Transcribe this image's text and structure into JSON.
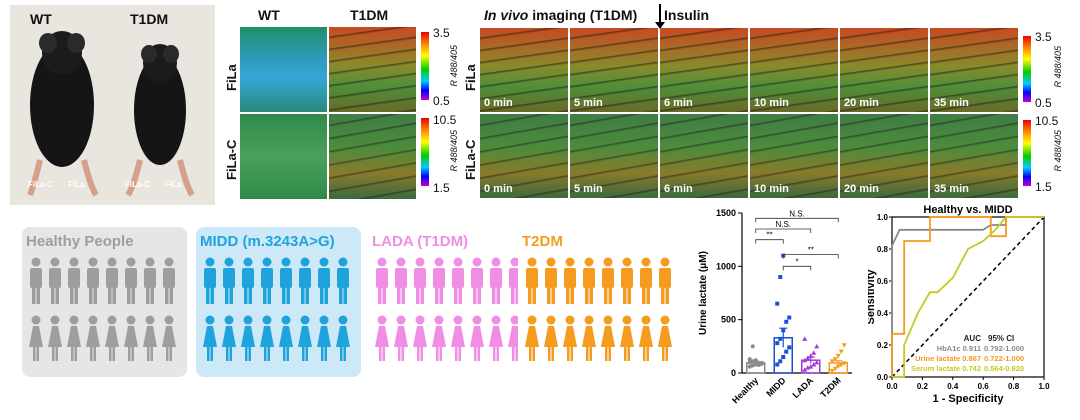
{
  "mice": {
    "wt": "WT",
    "t1dm": "T1DM",
    "labels": [
      "FiLa-C",
      "FiLa",
      "FiLa-C",
      "FiLa"
    ]
  },
  "panel_b": {
    "col_wt": "WT",
    "col_t1dm": "T1DM",
    "row1": "FiLa",
    "row2": "FiLa-C",
    "cbar1": {
      "max": "3.5",
      "min": "0.5",
      "label": "R 488/405"
    },
    "cbar2": {
      "max": "10.5",
      "min": "1.5",
      "label": "R 488/405"
    }
  },
  "panel_c": {
    "title_italic": "In vivo",
    "title_rest": " imaging (T1DM)",
    "arrow_label": "Insulin",
    "row1": "FiLa",
    "row2": "FiLa-C",
    "times": [
      "0 min",
      "5 min",
      "6 min",
      "10 min",
      "20 min",
      "35 min"
    ],
    "cbar1": {
      "max": "3.5",
      "min": "0.5",
      "label": "R 488/405"
    },
    "cbar2": {
      "max": "10.5",
      "min": "1.5",
      "label": "R 488/405"
    }
  },
  "groups": [
    {
      "name": "Healthy People",
      "color": "#9e9e9e",
      "bg": "#e6e6e6"
    },
    {
      "name": "MIDD (m.3243A>G)",
      "color": "#1fa3dc",
      "bg": "#cde9f7"
    },
    {
      "name": "LADA (T1DM)",
      "color": "#f08ee6",
      "bg": "#ffffff"
    },
    {
      "name": "T2DM",
      "color": "#f59b1e",
      "bg": "#ffffff"
    }
  ],
  "chart_data": [
    {
      "type": "scatter",
      "ylabel": "Urine lactate (μM)",
      "categories": [
        "Healthy",
        "MIDD",
        "LADA",
        "T2DM"
      ],
      "ylim": [
        0,
        1500
      ],
      "yticks": [
        "0",
        "500",
        "1000",
        "1500"
      ],
      "colors": [
        "#8a8a8a",
        "#1a4fd6",
        "#a23bd6",
        "#f59b1e"
      ],
      "means": [
        95,
        330,
        120,
        95
      ],
      "sem": [
        15,
        90,
        30,
        20
      ],
      "points": [
        [
          60,
          70,
          80,
          90,
          95,
          100,
          110,
          120,
          75,
          85,
          130,
          250
        ],
        [
          80,
          110,
          150,
          200,
          240,
          280,
          320,
          400,
          480,
          520,
          650,
          900,
          1100
        ],
        [
          30,
          50,
          60,
          80,
          100,
          120,
          140,
          160,
          190,
          250,
          320
        ],
        [
          20,
          40,
          60,
          75,
          90,
          110,
          130,
          160,
          200,
          260
        ]
      ],
      "comparisons": [
        {
          "label": "N.S.",
          "from": "Healthy",
          "to": "T2DM"
        },
        {
          "label": "N.S.",
          "from": "Healthy",
          "to": "LADA"
        },
        {
          "label": "**",
          "from": "Healthy",
          "to": "MIDD"
        },
        {
          "label": "**",
          "from": "MIDD",
          "to": "T2DM"
        },
        {
          "label": "*",
          "from": "MIDD",
          "to": "LADA"
        }
      ]
    },
    {
      "type": "line",
      "title": "Healthy vs. MIDD",
      "xlabel": "1 - Specificity",
      "ylabel": "Sensitivity",
      "xlim": [
        0,
        1
      ],
      "ylim": [
        0,
        1
      ],
      "ticks": [
        "0.0",
        "0.2",
        "0.4",
        "0.6",
        "0.8",
        "1.0"
      ],
      "legend_header": {
        "auc": "AUC",
        "ci": "95% CI"
      },
      "series": [
        {
          "name": "HbA1c",
          "auc": "0.911",
          "ci": "0.792-1.000",
          "color": "#888888",
          "x": [
            0,
            0,
            0.05,
            0.6,
            0.65,
            0.75,
            0.75,
            1
          ],
          "y": [
            0,
            0.82,
            0.92,
            0.92,
            0.95,
            0.95,
            1,
            1
          ]
        },
        {
          "name": "Urine lactate",
          "auc": "0.867",
          "ci": "0.722-1.000",
          "color": "#f59b1e",
          "x": [
            0,
            0,
            0.08,
            0.08,
            0.25,
            0.25,
            0.65,
            0.65,
            0.75,
            0.75,
            1
          ],
          "y": [
            0,
            0.27,
            0.27,
            0.85,
            0.85,
            1,
            1,
            0.88,
            0.88,
            1,
            1
          ]
        },
        {
          "name": "Serum lactate",
          "auc": "0.742",
          "ci": "0.564-0.920",
          "color": "#c8c81e",
          "x": [
            0,
            0.08,
            0.08,
            0.17,
            0.25,
            0.3,
            0.4,
            0.5,
            0.6,
            0.68,
            0.75,
            1
          ],
          "y": [
            0,
            0,
            0.2,
            0.4,
            0.53,
            0.53,
            0.62,
            0.8,
            0.85,
            0.92,
            1,
            1
          ]
        }
      ]
    }
  ]
}
